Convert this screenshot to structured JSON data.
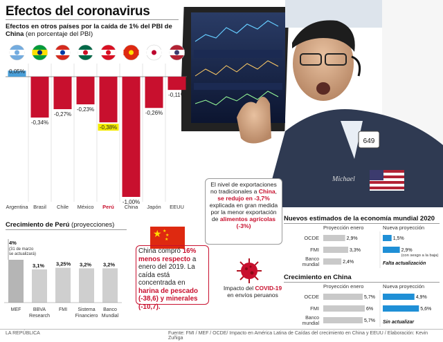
{
  "header": {
    "title": "Efectos del coronavirus",
    "subtitle_bold": "Efectos en otros países por la caída de 1% del PBI de China",
    "subtitle_note": "(en porcentaje del PBI)"
  },
  "chart_data": [
    {
      "type": "bar",
      "title": "Efectos en otros países por la caída de 1% del PBI de China (en porcentaje del PBI)",
      "categories": [
        "Argentina",
        "Brasil",
        "Chile",
        "México",
        "Perú",
        "China",
        "Japón",
        "EEUU"
      ],
      "values": [
        0.05,
        -0.34,
        -0.27,
        -0.23,
        -0.38,
        -1.0,
        -0.26,
        -0.11
      ],
      "value_labels": [
        "0,05%",
        "-0,34%",
        "-0,27%",
        "-0,23%",
        "-0,38%",
        "-1,00%",
        "-0,26%",
        "-0,11%"
      ],
      "ylim": [
        -1.0,
        0.05
      ],
      "colors": {
        "positive": "#4a9fd8",
        "negative": "#c8102e",
        "highlight": "#f3ea00"
      }
    },
    {
      "type": "bar",
      "title": "Crecimiento de Perú (proyecciones)",
      "categories": [
        "MEF",
        "BBVA Research",
        "FMI",
        "Sistema Financiero",
        "Banco Mundial"
      ],
      "values": [
        4.0,
        3.1,
        3.25,
        3.2,
        3.2
      ],
      "value_labels": [
        "4%",
        "3,1%",
        "3,25%",
        "3,2%",
        "3,2%"
      ],
      "ylim": [
        0,
        4.0
      ]
    },
    {
      "type": "bar",
      "title": "Nuevos estimados de la economía mundial 2020",
      "categories": [
        "OCDE",
        "FMI",
        "Banco mundial"
      ],
      "series": [
        {
          "name": "Proyección enero",
          "values": [
            2.9,
            3.3,
            2.4
          ],
          "labels": [
            "2,9%",
            "3,3%",
            "2,4%"
          ]
        },
        {
          "name": "Nueva proyección",
          "values": [
            1.5,
            2.9,
            null
          ],
          "labels": [
            "1,5%",
            "2,9%",
            ""
          ]
        }
      ]
    },
    {
      "type": "bar",
      "title": "Crecimiento en China",
      "categories": [
        "OCDE",
        "FMI",
        "Banco mundial"
      ],
      "series": [
        {
          "name": "Proyección enero",
          "values": [
            5.7,
            6.0,
            5.7
          ],
          "labels": [
            "5,7%",
            "6%",
            "5,7%"
          ]
        },
        {
          "name": "Nueva proyección",
          "values": [
            4.9,
            5.6,
            null
          ],
          "labels": [
            "4,9%",
            "5,6%",
            ""
          ]
        }
      ]
    }
  ],
  "peru": {
    "section_bold": "Crecimiento de Perú",
    "section_note": "(proyecciones)",
    "mef_note": "(31 de marzo se actualizará)"
  },
  "world": {
    "col_enero": "Proyección enero",
    "col_nueva": "Nueva proyección",
    "fmi_note": "(con sesgo a la baja)",
    "pending": "Falta actualización"
  },
  "china_growth": {
    "pending": "Sin actualizar"
  },
  "china_box": {
    "t1": "China compró ",
    "t2": "16% menos respecto",
    "t3": " a enero del 2019. La caída está concentrada en ",
    "t4": "harina de pescado (-38,6) y minerales (-10,7).",
    "flag_color": "#de2910"
  },
  "callout": {
    "t1": "El nivel de exportaciones no tradicionales a ",
    "t2": "China",
    "t3": ", ",
    "t4": "se redujo en -3,7%",
    "t5": " explicada en gran medida por la menor exportación de ",
    "t6": "alimentos agrícolas (-3%)"
  },
  "virus": {
    "t1": "Impacto del ",
    "t2": "COVID-19",
    "t3": " en envíos peruanos"
  },
  "photo": {
    "badge": "649",
    "name": "Michael"
  },
  "footer": {
    "brand": "LA REPÚBLICA",
    "source": "Fuente: FMI / MEF / OCDE/ Impacto en América Latina de Caídas del crecimiento en China y EEUU / Elaboración: Kevin Zuñiga"
  },
  "colors": {
    "red": "#c8102e",
    "blue": "#1f8fd6",
    "gray": "#c9c9c9",
    "dark": "#111111"
  }
}
